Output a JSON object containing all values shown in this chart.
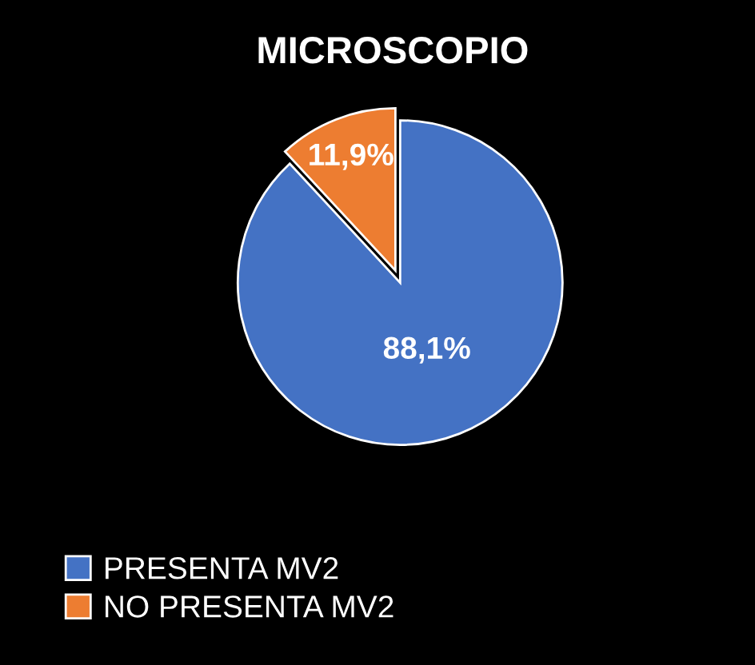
{
  "chart_data": {
    "type": "pie",
    "title": "MICROSCOPIO",
    "categories": [
      "PRESENTA MV2",
      "NO PRESENTA MV2"
    ],
    "values": [
      88.1,
      11.9
    ],
    "value_labels": [
      "88,1%",
      "11,9%"
    ],
    "colors": [
      "#4472c4",
      "#ed7d31"
    ],
    "legend": "bottom left"
  }
}
